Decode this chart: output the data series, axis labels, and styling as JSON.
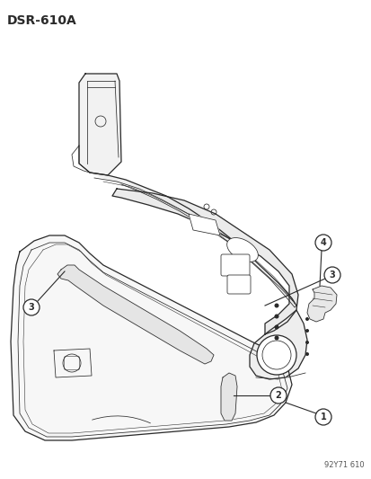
{
  "title": "DSR-610A",
  "footnote": "92Y71 610",
  "background_color": "#ffffff",
  "line_color": "#2a2a2a",
  "figsize": [
    4.14,
    5.33
  ],
  "dpi": 100
}
